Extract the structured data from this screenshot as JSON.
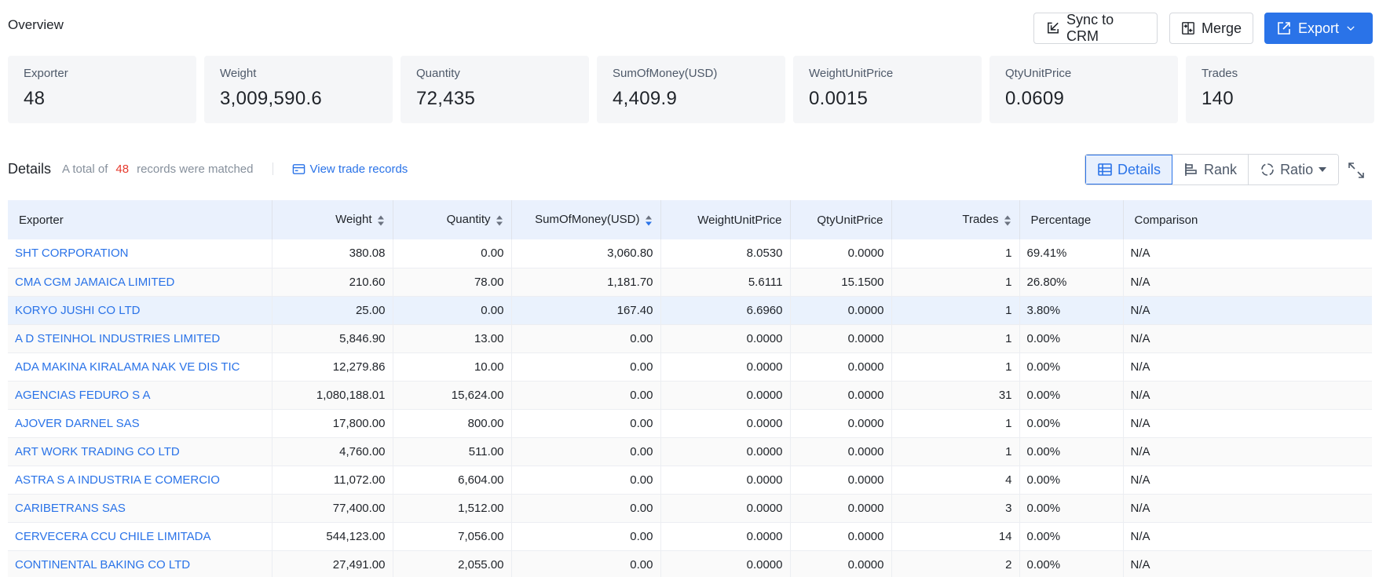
{
  "overview": {
    "title": "Overview",
    "buttons": {
      "sync": "Sync to CRM",
      "merge": "Merge",
      "export": "Export"
    }
  },
  "stats": [
    {
      "label": "Exporter",
      "value": "48"
    },
    {
      "label": "Weight",
      "value": "3,009,590.6"
    },
    {
      "label": "Quantity",
      "value": "72,435"
    },
    {
      "label": "SumOfMoney(USD)",
      "value": "4,409.9"
    },
    {
      "label": "WeightUnitPrice",
      "value": "0.0015"
    },
    {
      "label": "QtyUnitPrice",
      "value": "0.0609"
    },
    {
      "label": "Trades",
      "value": "140"
    }
  ],
  "details": {
    "title": "Details",
    "total_prefix": "A total of",
    "total_count": "48",
    "total_suffix": "records were matched",
    "view_link": "View trade records",
    "views": {
      "details": "Details",
      "rank": "Rank",
      "ratio": "Ratio"
    },
    "active_view": "details"
  },
  "table": {
    "columns": [
      "Exporter",
      "Weight",
      "Quantity",
      "SumOfMoney(USD)",
      "WeightUnitPrice",
      "QtyUnitPrice",
      "Trades",
      "Percentage",
      "Comparison"
    ],
    "sorted_column": "SumOfMoney(USD)",
    "sort_direction": "descending",
    "rows": [
      [
        "SHT CORPORATION",
        "380.08",
        "0.00",
        "3,060.80",
        "8.0530",
        "0.0000",
        "1",
        "69.41%",
        "N/A"
      ],
      [
        "CMA CGM JAMAICA LIMITED",
        "210.60",
        "78.00",
        "1,181.70",
        "5.6111",
        "15.1500",
        "1",
        "26.80%",
        "N/A"
      ],
      [
        "KORYO JUSHI CO LTD",
        "25.00",
        "0.00",
        "167.40",
        "6.6960",
        "0.0000",
        "1",
        "3.80%",
        "N/A"
      ],
      [
        "A D STEINHOL INDUSTRIES LIMITED",
        "5,846.90",
        "13.00",
        "0.00",
        "0.0000",
        "0.0000",
        "1",
        "0.00%",
        "N/A"
      ],
      [
        "ADA MAKINA KIRALAMA NAK VE DIS TIC",
        "12,279.86",
        "10.00",
        "0.00",
        "0.0000",
        "0.0000",
        "1",
        "0.00%",
        "N/A"
      ],
      [
        "AGENCIAS FEDURO S A",
        "1,080,188.01",
        "15,624.00",
        "0.00",
        "0.0000",
        "0.0000",
        "31",
        "0.00%",
        "N/A"
      ],
      [
        "AJOVER DARNEL SAS",
        "17,800.00",
        "800.00",
        "0.00",
        "0.0000",
        "0.0000",
        "1",
        "0.00%",
        "N/A"
      ],
      [
        "ART WORK TRADING CO LTD",
        "4,760.00",
        "511.00",
        "0.00",
        "0.0000",
        "0.0000",
        "1",
        "0.00%",
        "N/A"
      ],
      [
        "ASTRA S A INDUSTRIA E COMERCIO",
        "11,072.00",
        "6,604.00",
        "0.00",
        "0.0000",
        "0.0000",
        "4",
        "0.00%",
        "N/A"
      ],
      [
        "CARIBETRANS SAS",
        "77,400.00",
        "1,512.00",
        "0.00",
        "0.0000",
        "0.0000",
        "3",
        "0.00%",
        "N/A"
      ],
      [
        "CERVECERA CCU CHILE LIMITADA",
        "544,123.00",
        "7,056.00",
        "0.00",
        "0.0000",
        "0.0000",
        "14",
        "0.00%",
        "N/A"
      ],
      [
        "CONTINENTAL BAKING CO LTD",
        "27,491.00",
        "2,055.00",
        "0.00",
        "0.0000",
        "0.0000",
        "2",
        "0.00%",
        "N/A"
      ]
    ],
    "highlighted_row": 2
  },
  "colors": {
    "accent": "#2a73e8",
    "count_red": "#e63b2e",
    "header_bg": "#eaf1fd"
  }
}
